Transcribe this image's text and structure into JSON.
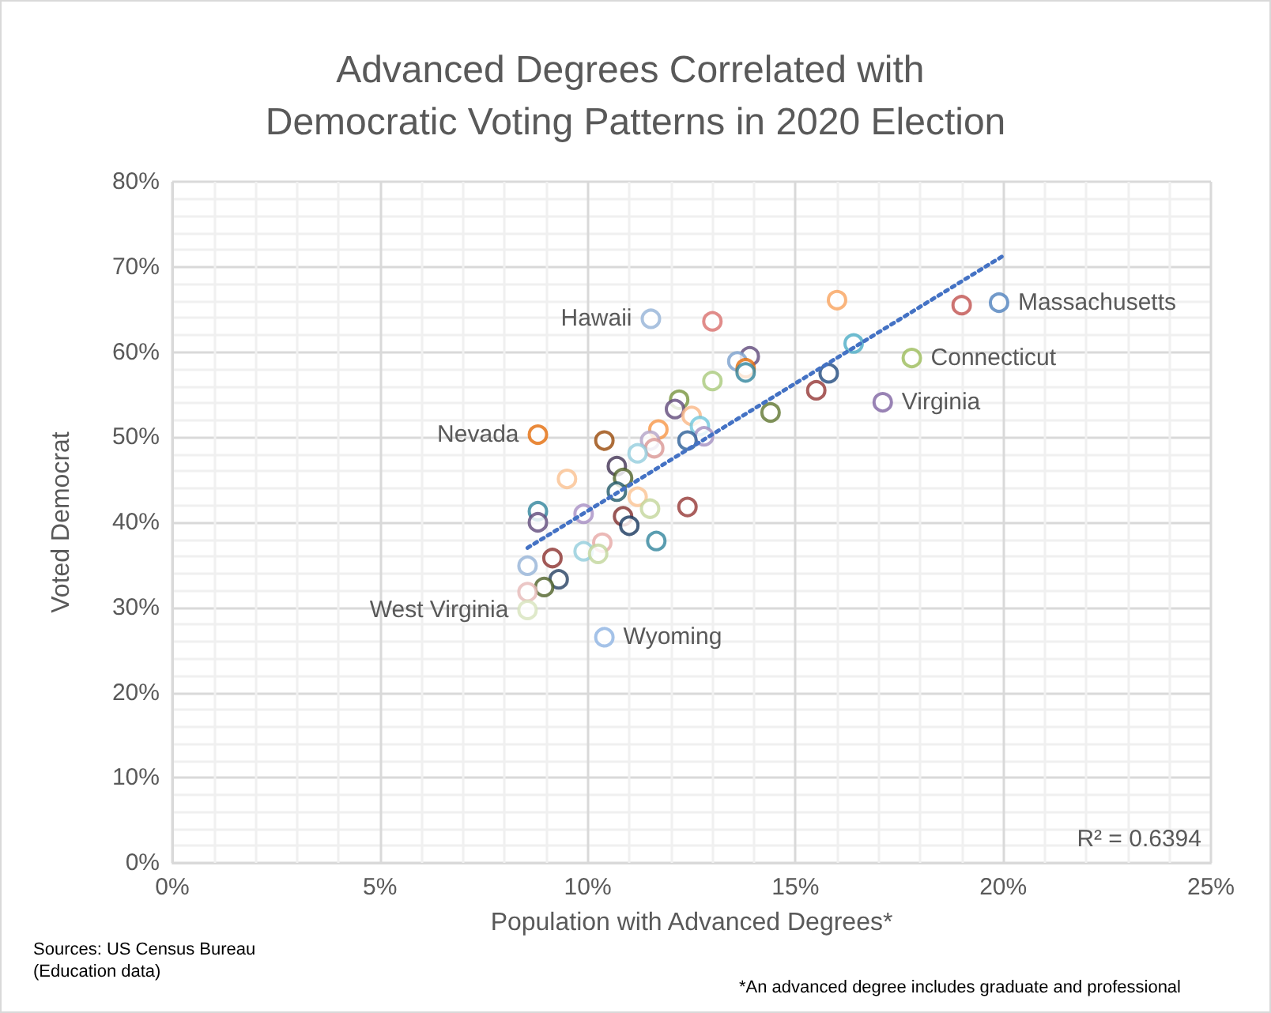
{
  "chart_data": {
    "type": "scatter",
    "title": "Advanced Degrees Correlated with Democratic Voting Patterns in 2020 Election",
    "xlabel": "Population with Advanced Degrees*",
    "ylabel": "Voted Democrat",
    "x": [
      11.52,
      13.0,
      16.0,
      19.9,
      19.0,
      16.4,
      17.8,
      17.1,
      15.8,
      15.5,
      14.4,
      13.9,
      13.6,
      13.8,
      13.8,
      13.0,
      12.2,
      12.1,
      12.5,
      12.7,
      12.8,
      12.4,
      11.7,
      11.5,
      11.6,
      11.2,
      8.8,
      10.4,
      9.5,
      10.7,
      10.85,
      10.7,
      11.2,
      11.5,
      12.4,
      8.8,
      8.8,
      9.9,
      10.85,
      11.0,
      11.65,
      10.35,
      9.9,
      10.25,
      9.15,
      8.55,
      9.3,
      8.95,
      8.55,
      8.55,
      10.4
    ],
    "values": [
      63.9,
      63.6,
      66.1,
      65.8,
      65.5,
      61.0,
      59.3,
      54.1,
      57.5,
      55.5,
      52.9,
      59.5,
      58.9,
      58.1,
      57.6,
      56.6,
      54.4,
      53.3,
      52.5,
      51.3,
      50.1,
      49.6,
      50.9,
      49.6,
      48.7,
      48.1,
      50.3,
      49.6,
      45.1,
      46.6,
      45.2,
      43.6,
      43.0,
      41.6,
      41.8,
      41.3,
      40.0,
      41.0,
      40.7,
      39.6,
      37.8,
      37.6,
      36.6,
      36.3,
      35.8,
      34.9,
      33.3,
      32.4,
      31.8,
      29.7,
      26.5
    ],
    "colors": [
      "#95b3d7",
      "#da6f6d",
      "#f9a25c",
      "#4f81bd",
      "#c0504d",
      "#4bacc6",
      "#9bbb59",
      "#8064a2",
      "#1f497d",
      "#943634",
      "#5f7530",
      "#5f497a",
      "#7ba0cd",
      "#e46c0a",
      "#31859c",
      "#a9c97a",
      "#77933c",
      "#60497a",
      "#fab785",
      "#70c7dc",
      "#a38fc1",
      "#2a5e96",
      "#f79646",
      "#b3a2c7",
      "#d99694",
      "#93cddd",
      "#e36c09",
      "#984807",
      "#fac090",
      "#403152",
      "#4f6228",
      "#215968",
      "#fbc392",
      "#c3d69b",
      "#953735",
      "#31859c",
      "#604a7b",
      "#a88fc4",
      "#7f2c2a",
      "#17365d",
      "#31859c",
      "#e6a7a5",
      "#92cddc",
      "#c2d69b",
      "#8b2f2d",
      "#95b3d7",
      "#254061",
      "#4f6228",
      "#e6b9b8",
      "#d7e4bd",
      "#8db3e2"
    ],
    "series": [
      {
        "type": "line",
        "color": "#4472c4",
        "line_style": "dotted",
        "marker": "none",
        "x": [
          8.55,
          20.0
        ],
        "values": [
          37.0,
          71.3
        ]
      }
    ],
    "xlim": [
      0,
      25
    ],
    "xticks": [
      {
        "value": 0,
        "label": "0%"
      },
      {
        "value": 5,
        "label": "5%"
      },
      {
        "value": 10,
        "label": "10%"
      },
      {
        "value": 15,
        "label": "15%"
      },
      {
        "value": 20,
        "label": "20%"
      },
      {
        "value": 25,
        "label": "25%"
      }
    ],
    "ylim": [
      0,
      80
    ],
    "yticks": [
      {
        "value": 0,
        "label": "0%"
      },
      {
        "value": 10,
        "label": "10%"
      },
      {
        "value": 20,
        "label": "20%"
      },
      {
        "value": 30,
        "label": "30%"
      },
      {
        "value": 40,
        "label": "40%"
      },
      {
        "value": 50,
        "label": "50%"
      },
      {
        "value": 60,
        "label": "60%"
      },
      {
        "value": 70,
        "label": "70%"
      },
      {
        "value": 80,
        "label": "80%"
      }
    ],
    "grid": true,
    "marker": "circle",
    "annotations": [
      {
        "text": "Hawaii",
        "x": 11.52,
        "y": 63.9
      },
      {
        "text": "Massachusetts",
        "x": 19.9,
        "y": 65.8
      },
      {
        "text": "Connecticut",
        "x": 17.8,
        "y": 59.3
      },
      {
        "text": "Virginia",
        "x": 17.1,
        "y": 54.1
      },
      {
        "text": "Nevada",
        "x": 8.8,
        "y": 50.3
      },
      {
        "text": "West Virginia",
        "x": 8.55,
        "y": 29.7
      },
      {
        "text": "Wyoming",
        "x": 10.4,
        "y": 26.5
      },
      "R² = 0.6394",
      "Sources: US Census Bureau (Education data)",
      "*An advanced degree includes graduate and professional"
    ]
  }
}
